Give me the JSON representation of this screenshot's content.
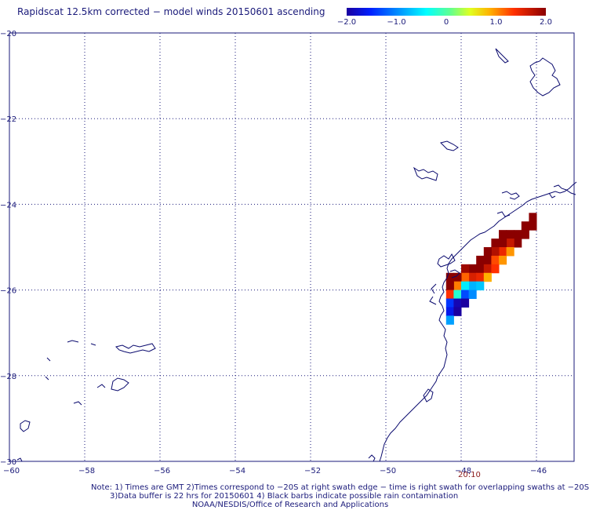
{
  "title": "Rapidscat 12.5km corrected − model winds 20150601 ascending",
  "colorbar": {
    "min": -2.0,
    "max": 2.0,
    "ticks": [
      "−2.0",
      "−1.0",
      "0",
      "1.0",
      "2.0"
    ],
    "tick_values": [
      -2.0,
      -1.0,
      0,
      1.0,
      2.0
    ]
  },
  "axes": {
    "x_ticks": [
      "−60",
      "−58",
      "−56",
      "−54",
      "−52",
      "−50",
      "−48",
      "−46"
    ],
    "x_values": [
      -60,
      -58,
      -56,
      -54,
      -52,
      -50,
      -48,
      -46
    ],
    "y_ticks": [
      "−20",
      "−22",
      "−24",
      "−26",
      "−28",
      "−30"
    ],
    "y_values": [
      -20,
      -22,
      -24,
      -26,
      -28,
      -30
    ],
    "x_range": [
      -60,
      -45
    ],
    "y_range": [
      -30,
      -20
    ]
  },
  "time_label": "20:10",
  "swath_cells": [
    {
      "lon": -46.2,
      "lat": -24.2,
      "v": 2.0
    },
    {
      "lon": -46.2,
      "lat": -24.4,
      "v": 2.0
    },
    {
      "lon": -46.4,
      "lat": -24.4,
      "v": 2.0
    },
    {
      "lon": -46.4,
      "lat": -24.6,
      "v": 2.0
    },
    {
      "lon": -46.6,
      "lat": -24.6,
      "v": 2.0
    },
    {
      "lon": -46.8,
      "lat": -24.6,
      "v": 2.0
    },
    {
      "lon": -46.6,
      "lat": -24.8,
      "v": 2.0
    },
    {
      "lon": -46.8,
      "lat": -24.8,
      "v": 1.7
    },
    {
      "lon": -47.0,
      "lat": -24.6,
      "v": 2.0
    },
    {
      "lon": -47.0,
      "lat": -24.8,
      "v": 2.0
    },
    {
      "lon": -47.2,
      "lat": -24.8,
      "v": 2.0
    },
    {
      "lon": -47.0,
      "lat": -25.0,
      "v": 1.5
    },
    {
      "lon": -46.8,
      "lat": -25.0,
      "v": 1.0
    },
    {
      "lon": -47.2,
      "lat": -25.0,
      "v": 1.8
    },
    {
      "lon": -47.4,
      "lat": -25.0,
      "v": 2.0
    },
    {
      "lon": -47.4,
      "lat": -25.2,
      "v": 2.0
    },
    {
      "lon": -47.2,
      "lat": -25.2,
      "v": 1.3
    },
    {
      "lon": -47.0,
      "lat": -25.2,
      "v": 1.0
    },
    {
      "lon": -47.6,
      "lat": -25.2,
      "v": 2.0
    },
    {
      "lon": -47.6,
      "lat": -25.4,
      "v": 2.0
    },
    {
      "lon": -47.4,
      "lat": -25.4,
      "v": 1.7
    },
    {
      "lon": -47.2,
      "lat": -25.4,
      "v": 1.4
    },
    {
      "lon": -47.8,
      "lat": -25.4,
      "v": 2.0
    },
    {
      "lon": -47.8,
      "lat": -25.6,
      "v": 1.6
    },
    {
      "lon": -47.6,
      "lat": -25.6,
      "v": 1.5
    },
    {
      "lon": -47.4,
      "lat": -25.6,
      "v": 0.9
    },
    {
      "lon": -48.0,
      "lat": -25.4,
      "v": 1.9
    },
    {
      "lon": -48.0,
      "lat": -25.6,
      "v": 1.2
    },
    {
      "lon": -48.2,
      "lat": -25.6,
      "v": 2.0
    },
    {
      "lon": -48.4,
      "lat": -25.6,
      "v": 2.0
    },
    {
      "lon": -48.2,
      "lat": -25.8,
      "v": 1.1
    },
    {
      "lon": -47.8,
      "lat": -25.8,
      "v": -0.8
    },
    {
      "lon": -48.0,
      "lat": -25.8,
      "v": -0.5
    },
    {
      "lon": -47.6,
      "lat": -25.8,
      "v": -0.7
    },
    {
      "lon": -48.4,
      "lat": -25.8,
      "v": 2.0
    },
    {
      "lon": -48.4,
      "lat": -26.0,
      "v": 1.4
    },
    {
      "lon": -48.2,
      "lat": -26.0,
      "v": -0.2
    },
    {
      "lon": -48.0,
      "lat": -26.0,
      "v": -1.3
    },
    {
      "lon": -47.8,
      "lat": -26.0,
      "v": -1.0
    },
    {
      "lon": -48.4,
      "lat": -26.2,
      "v": -1.4
    },
    {
      "lon": -48.2,
      "lat": -26.2,
      "v": -1.9
    },
    {
      "lon": -48.0,
      "lat": -26.2,
      "v": -2.0
    },
    {
      "lon": -48.4,
      "lat": -26.4,
      "v": -1.6
    },
    {
      "lon": -48.2,
      "lat": -26.4,
      "v": -2.0
    },
    {
      "lon": -48.4,
      "lat": -26.6,
      "v": -0.9
    }
  ],
  "notes": {
    "line1": "Note: 1) Times are GMT 2)Times correspond to −20S at right swath edge − time is right swath for overlapping swaths at −20S",
    "line2": "3)Data buffer is 22 hrs for 20150601 4) Black barbs indicate possible rain contamination",
    "credit": "NOAA/NESDIS/Office of Research and Applications"
  },
  "colors": {
    "coast": "#0a0a6e",
    "grid": "#1a1a7a",
    "text": "#1a1a7a",
    "time_label": "#8b1a1a"
  }
}
